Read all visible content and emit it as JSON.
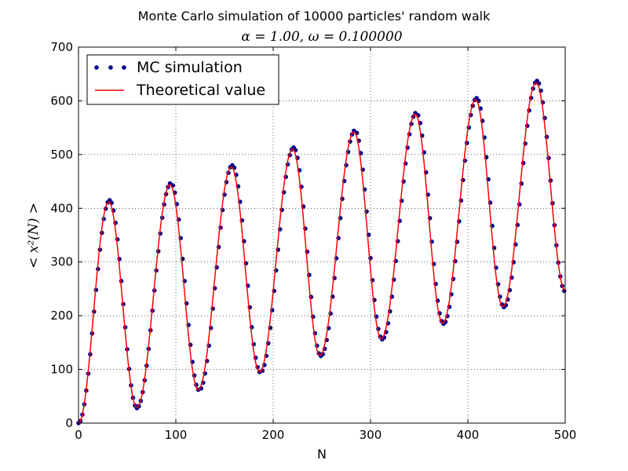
{
  "chart_data": {
    "type": "line",
    "title": "Monte Carlo simulation of 10000 particles' random walk",
    "subtitle": "α = 1.00, ω = 0.100000",
    "xlabel": "N",
    "ylabel": "< x²(N) >",
    "xlim": [
      0,
      500
    ],
    "ylim": [
      0,
      700
    ],
    "xticks": [
      0,
      100,
      200,
      300,
      400,
      500
    ],
    "yticks": [
      0,
      100,
      200,
      300,
      400,
      500,
      600,
      700
    ],
    "grid": true,
    "legend_position": "top-left",
    "series": [
      {
        "name": "MC simulation",
        "style": "dots",
        "color": "#00008b",
        "peaks": [
          [
            32,
            415
          ],
          [
            95,
            447
          ],
          [
            158,
            480
          ],
          [
            221,
            513
          ],
          [
            284,
            545
          ],
          [
            347,
            578
          ],
          [
            409,
            605
          ],
          [
            471,
            637
          ]
        ],
        "troughs": [
          [
            0,
            0
          ],
          [
            60,
            28
          ],
          [
            124,
            61
          ],
          [
            187,
            94
          ],
          [
            249,
            125
          ],
          [
            312,
            156
          ],
          [
            375,
            185
          ],
          [
            437,
            216
          ],
          [
            500,
            245
          ]
        ]
      },
      {
        "name": "Theoretical value",
        "style": "line",
        "color": "#ff0000",
        "peaks": [
          [
            31,
            412
          ],
          [
            94,
            444
          ],
          [
            157,
            477
          ],
          [
            220,
            510
          ],
          [
            283,
            542
          ],
          [
            346,
            575
          ],
          [
            408,
            602
          ],
          [
            470,
            634
          ]
        ],
        "troughs": [
          [
            0,
            0
          ],
          [
            60,
            29
          ],
          [
            123,
            62
          ],
          [
            186,
            95
          ],
          [
            248,
            126
          ],
          [
            311,
            157
          ],
          [
            374,
            186
          ],
          [
            436,
            217
          ],
          [
            500,
            246
          ]
        ]
      }
    ]
  }
}
